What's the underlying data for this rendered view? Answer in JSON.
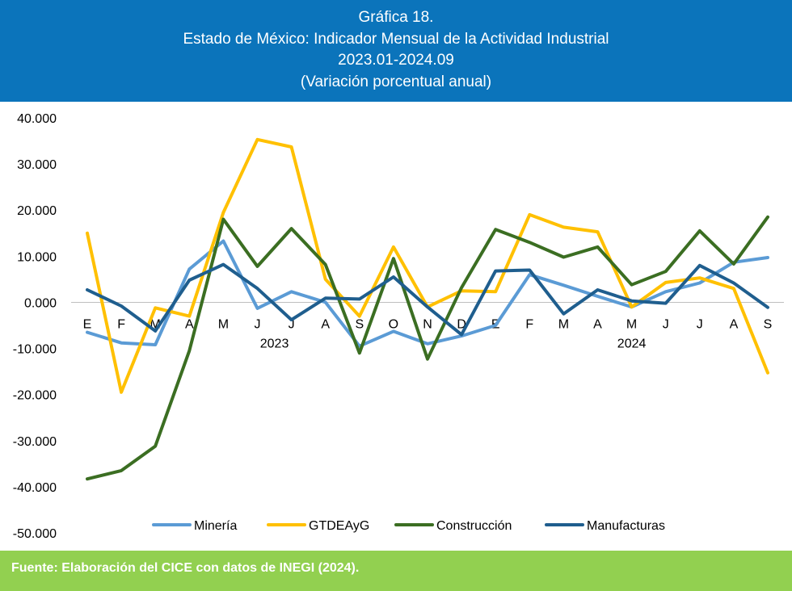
{
  "header": {
    "line1": "Gráfica 18.",
    "line2": "Estado de México: Indicador Mensual de la Actividad Industrial",
    "line3": "2023.01-2024.09",
    "line4": "(Variación porcentual anual)"
  },
  "footer": {
    "source": "Fuente: Elaboración del CICE con datos de INEGI (2024)."
  },
  "chart_data": {
    "type": "line",
    "title": "",
    "xlabel": "",
    "ylabel": "",
    "ylim": [
      -50,
      40
    ],
    "ytick_labels": [
      "40.000",
      "30.000",
      "20.000",
      "10.000",
      "0.000",
      "-10.000",
      "-20.000",
      "-30.000",
      "-40.000",
      "-50.000"
    ],
    "categories": [
      "E",
      "F",
      "M",
      "A",
      "M",
      "J",
      "J",
      "A",
      "S",
      "O",
      "N",
      "D",
      "E",
      "F",
      "M",
      "A",
      "M",
      "J",
      "J",
      "A",
      "S"
    ],
    "year_groups": [
      {
        "label": "2023",
        "start": 0,
        "end": 11
      },
      {
        "label": "2024",
        "start": 12,
        "end": 20
      }
    ],
    "grid": false,
    "legend_position": "bottom",
    "series": [
      {
        "name": "Minería",
        "color": "#5B9BD5",
        "values": [
          -6.5,
          -8.8,
          -9.2,
          7.2,
          13.3,
          -1.3,
          2.3,
          0.0,
          -9.5,
          -6.3,
          -9.0,
          -7.3,
          -5.0,
          6.0,
          3.7,
          1.3,
          -1.0,
          2.3,
          4.2,
          8.7,
          9.7
        ]
      },
      {
        "name": "GTDEAyG",
        "color": "#FFC000",
        "values": [
          15.0,
          -19.5,
          -1.2,
          -3.0,
          19.5,
          35.3,
          33.7,
          5.0,
          -3.0,
          12.0,
          -1.0,
          2.5,
          2.3,
          19.0,
          16.3,
          15.3,
          -1.0,
          4.3,
          5.3,
          3.0,
          -15.3
        ]
      },
      {
        "name": "Construcción",
        "color": "#3B6E22",
        "values": [
          -38.3,
          -36.5,
          -31.2,
          -10.5,
          18.0,
          7.8,
          16.0,
          8.2,
          -11.0,
          9.5,
          -12.3,
          3.2,
          15.8,
          13.0,
          9.8,
          12.0,
          3.8,
          6.7,
          15.5,
          8.3,
          18.5
        ]
      },
      {
        "name": "Manufacturas",
        "color": "#1F5E8E",
        "values": [
          2.7,
          -0.8,
          -6.2,
          4.8,
          8.2,
          3.0,
          -3.8,
          0.9,
          0.7,
          5.5,
          -1.0,
          -7.0,
          6.8,
          7.0,
          -2.5,
          2.7,
          0.3,
          -0.2,
          8.0,
          4.2,
          -1.1
        ]
      }
    ]
  }
}
